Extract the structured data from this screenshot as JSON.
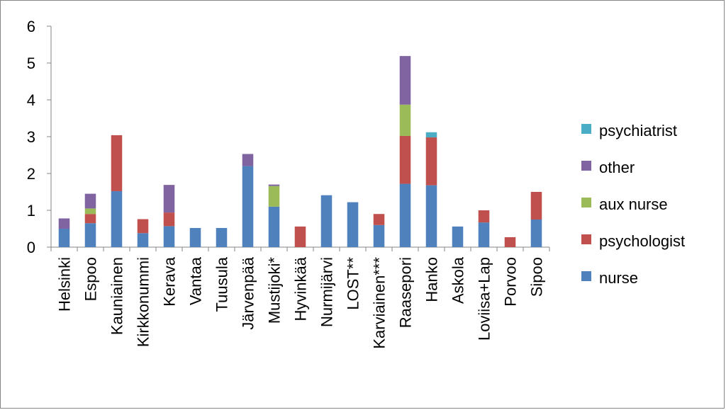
{
  "chart_data": {
    "type": "bar",
    "stacked": true,
    "categories": [
      "Helsinki",
      "Espoo",
      "Kauniainen",
      "Kirkkonummi",
      "Kerava",
      "Vantaa",
      "Tuusula",
      "Järvenpää",
      "Mustijoki*",
      "Hyvinkää",
      "Nurmijärvi",
      "LOST**",
      "Karviainen***",
      "Raasepori",
      "Hanko",
      "Askola",
      "Loviisa+Lap",
      "Porvoo",
      "Sipoo"
    ],
    "series": [
      {
        "name": "nurse",
        "color": "#4F81BD",
        "values": [
          0.5,
          0.65,
          1.52,
          0.38,
          0.57,
          0.52,
          0.52,
          2.2,
          1.1,
          0,
          1.41,
          1.22,
          0.6,
          1.72,
          1.68,
          0.56,
          0.67,
          0,
          0.75
        ]
      },
      {
        "name": "psychologist",
        "color": "#C0504D",
        "values": [
          0,
          0.25,
          1.52,
          0.38,
          0.37,
          0,
          0,
          0,
          0,
          0.56,
          0,
          0,
          0.3,
          1.3,
          1.3,
          0,
          0.33,
          0.27,
          0.75
        ]
      },
      {
        "name": "aux nurse",
        "color": "#9BBB59",
        "values": [
          0,
          0.15,
          0,
          0,
          0,
          0,
          0,
          0,
          0.56,
          0,
          0,
          0,
          0,
          0.85,
          0,
          0,
          0,
          0,
          0
        ]
      },
      {
        "name": "other",
        "color": "#8064A2",
        "values": [
          0.28,
          0.4,
          0,
          0,
          0.75,
          0,
          0,
          0.33,
          0.04,
          0,
          0,
          0,
          0,
          1.32,
          0,
          0,
          0,
          0,
          0
        ]
      },
      {
        "name": "psychiatrist",
        "color": "#4BACC6",
        "values": [
          0,
          0,
          0,
          0,
          0,
          0,
          0,
          0,
          0,
          0,
          0,
          0,
          0,
          0,
          0.14,
          0,
          0,
          0,
          0
        ]
      }
    ],
    "legend_order": [
      "psychiatrist",
      "other",
      "aux nurse",
      "psychologist",
      "nurse"
    ],
    "y_ticks": [
      "0",
      "1",
      "2",
      "3",
      "4",
      "5",
      "6"
    ],
    "ylim": [
      0,
      6
    ],
    "legend_position": "right",
    "grid": false
  }
}
